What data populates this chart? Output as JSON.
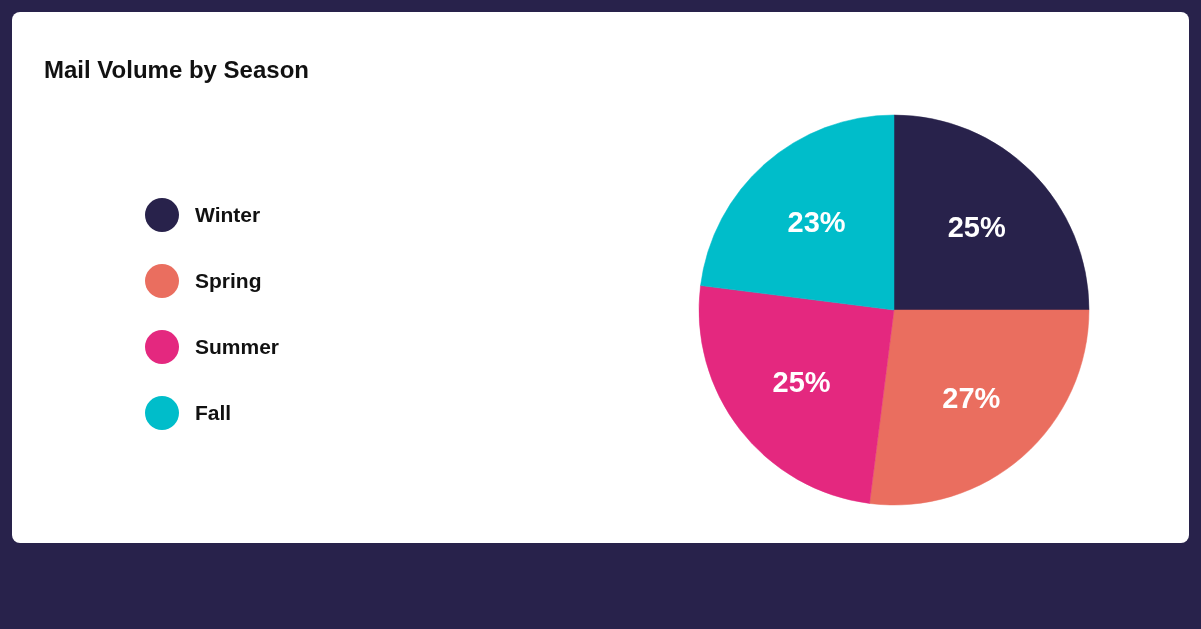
{
  "chart_data": {
    "type": "pie",
    "title": "Mail Volume by Season",
    "categories": [
      "Winter",
      "Spring",
      "Summer",
      "Fall"
    ],
    "values": [
      25,
      27,
      25,
      23
    ],
    "colors": [
      "#28224b",
      "#ea6e5f",
      "#e4287f",
      "#00bdca"
    ],
    "value_labels": [
      "25%",
      "27%",
      "25%",
      "23%"
    ],
    "legend": "left"
  }
}
